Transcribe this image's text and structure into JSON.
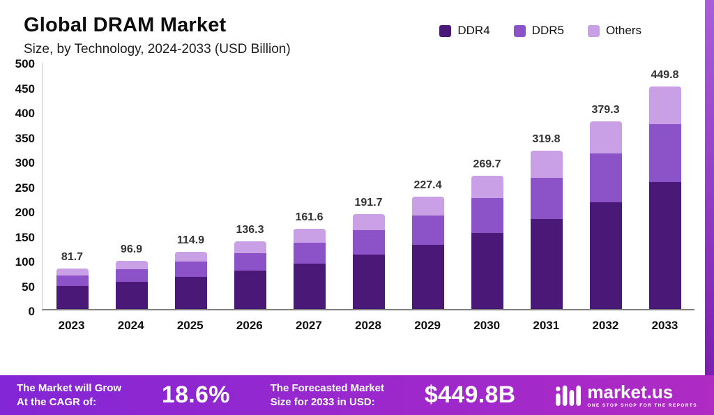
{
  "header": {
    "title": "Global DRAM Market",
    "subtitle": "Size, by Technology, 2024-2033 (USD Billion)"
  },
  "chart_data": {
    "type": "bar",
    "stacked": true,
    "title": "Global DRAM Market",
    "subtitle": "Size, by Technology, 2024-2033 (USD Billion)",
    "categories": [
      "2023",
      "2024",
      "2025",
      "2026",
      "2027",
      "2028",
      "2029",
      "2030",
      "2031",
      "2032",
      "2033"
    ],
    "series": [
      {
        "name": "DDR4",
        "color": "#4a1877",
        "values": [
          46.6,
          55.2,
          65.5,
          77.7,
          92.1,
          109.3,
          129.6,
          153.7,
          182.3,
          216.2,
          256.4
        ]
      },
      {
        "name": "DDR5",
        "color": "#8c52c7",
        "values": [
          21.2,
          25.2,
          29.9,
          35.4,
          42.0,
          49.8,
          59.1,
          70.1,
          83.1,
          98.6,
          117.0
        ]
      },
      {
        "name": "Others",
        "color": "#c9a0e6",
        "values": [
          13.9,
          16.5,
          19.5,
          23.2,
          27.5,
          32.6,
          38.7,
          45.9,
          54.4,
          64.5,
          76.4
        ]
      }
    ],
    "totals": [
      81.7,
      96.9,
      114.9,
      136.3,
      161.6,
      191.7,
      227.4,
      269.7,
      319.8,
      379.3,
      449.8
    ],
    "ylim": [
      0,
      500
    ],
    "yticks": [
      0,
      50,
      100,
      150,
      200,
      250,
      300,
      350,
      400,
      450,
      500
    ],
    "grid": false,
    "legend_position": "top-right",
    "ylabel": "",
    "xlabel": ""
  },
  "banner": {
    "growth_label_line1": "The Market will Grow",
    "growth_label_line2": "At the CAGR of:",
    "cagr_value": "18.6%",
    "forecast_label_line1": "The Forecasted Market",
    "forecast_label_line2": "Size for 2033 in USD:",
    "forecast_value": "$449.8B",
    "brand_name": "market.us",
    "brand_tagline": "ONE STOP SHOP FOR THE REPORTS"
  },
  "colors": {
    "ddr4": "#4a1877",
    "ddr5": "#8c52c7",
    "others": "#c9a0e6",
    "banner_gradient_left": "#8326d6",
    "banner_gradient_right": "#b02ac4",
    "side_strip_top": "#a95fd8",
    "side_strip_bottom": "#7a1fae"
  }
}
